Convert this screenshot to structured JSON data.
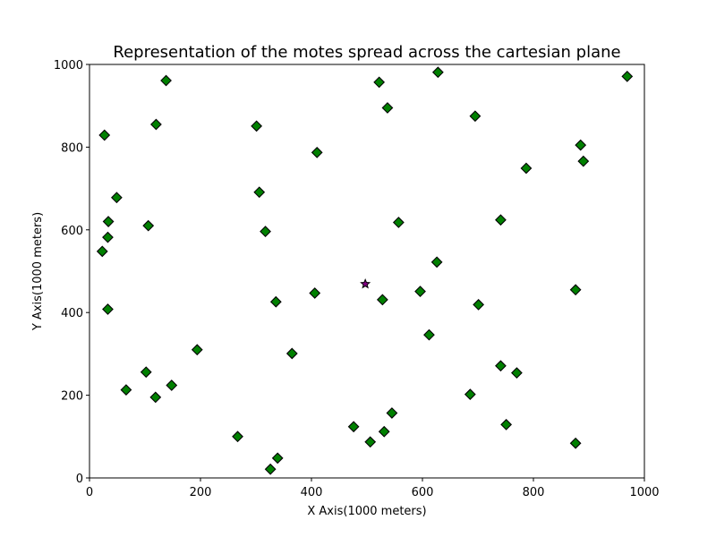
{
  "chart_data": {
    "type": "scatter",
    "title": "Representation of the motes spread across the cartesian plane",
    "xlabel": "X Axis(1000 meters)",
    "ylabel": "Y Axis(1000 meters)",
    "xlim": [
      0,
      1000
    ],
    "ylim": [
      0,
      1000
    ],
    "xticks": [
      "0",
      "200",
      "400",
      "600",
      "800",
      "1000"
    ],
    "yticks": [
      "0",
      "200",
      "400",
      "600",
      "800",
      "1000"
    ],
    "grid": false,
    "series": [
      {
        "marker": "diamond",
        "color": "#008000",
        "edgecolor": "#000000",
        "points": [
          [
            27,
            829
          ],
          [
            120,
            855
          ],
          [
            138,
            961
          ],
          [
            301,
            851
          ],
          [
            410,
            787
          ],
          [
            522,
            957
          ],
          [
            537,
            895
          ],
          [
            628,
            981
          ],
          [
            695,
            875
          ],
          [
            787,
            749
          ],
          [
            885,
            805
          ],
          [
            890,
            766
          ],
          [
            969,
            971
          ],
          [
            49,
            678
          ],
          [
            34,
            620
          ],
          [
            106,
            610
          ],
          [
            33,
            582
          ],
          [
            23,
            548
          ],
          [
            306,
            691
          ],
          [
            317,
            596
          ],
          [
            557,
            618
          ],
          [
            741,
            624
          ],
          [
            626,
            522
          ],
          [
            33,
            408
          ],
          [
            336,
            426
          ],
          [
            406,
            447
          ],
          [
            528,
            431
          ],
          [
            596,
            451
          ],
          [
            701,
            419
          ],
          [
            876,
            455
          ],
          [
            612,
            346
          ],
          [
            194,
            310
          ],
          [
            365,
            301
          ],
          [
            102,
            256
          ],
          [
            66,
            213
          ],
          [
            119,
            195
          ],
          [
            148,
            224
          ],
          [
            741,
            271
          ],
          [
            770,
            254
          ],
          [
            686,
            202
          ],
          [
            267,
            100
          ],
          [
            476,
            124
          ],
          [
            545,
            157
          ],
          [
            531,
            112
          ],
          [
            506,
            87
          ],
          [
            751,
            129
          ],
          [
            876,
            84
          ],
          [
            339,
            48
          ],
          [
            326,
            21
          ]
        ]
      },
      {
        "marker": "star",
        "color": "#800080",
        "edgecolor": "#000000",
        "points": [
          [
            497,
            469
          ]
        ]
      }
    ]
  }
}
